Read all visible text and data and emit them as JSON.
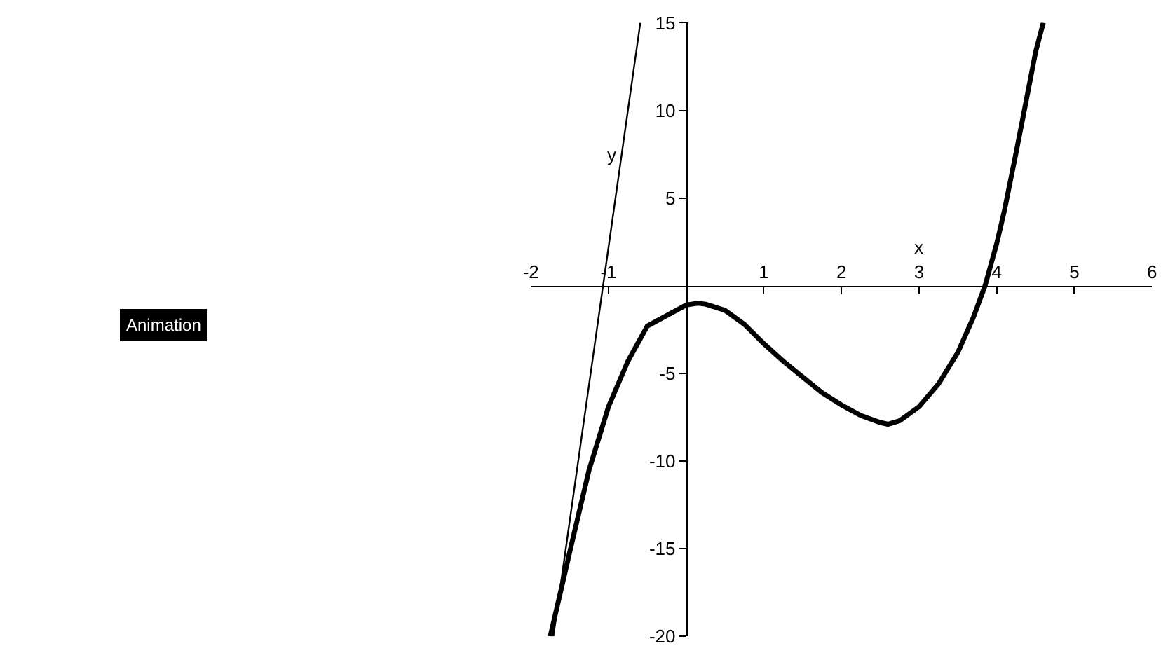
{
  "chart_data": {
    "type": "line",
    "xlabel": "x",
    "ylabel": "y",
    "annotations": [
      "Animation"
    ],
    "series": [
      {
        "color": "#000000",
        "x": [
          -1.75,
          -1.5,
          -1.25,
          -1.0,
          -0.75,
          -0.5,
          0,
          0.15,
          0.25,
          0.5,
          0.75,
          1,
          1.25,
          1.5,
          1.75,
          2,
          2.25,
          2.5,
          2.6,
          2.75,
          3,
          3.25,
          3.5,
          3.7,
          3.85,
          4,
          4.1,
          4.25,
          4.4,
          4.5,
          4.6
        ],
        "values": [
          -20,
          -15.2,
          -10.5,
          -6.9,
          -4.3,
          -2.3,
          -1.1,
          -1.0,
          -1.05,
          -1.4,
          -2.2,
          -3.3,
          -4.3,
          -5.2,
          -6.1,
          -6.8,
          -7.4,
          -7.8,
          -7.9,
          -7.7,
          -6.9,
          -5.6,
          -3.8,
          -1.8,
          0,
          2.4,
          4.3,
          7.6,
          11,
          13.3,
          15
        ]
      },
      {
        "color": "#000000",
        "x": [
          -1.71,
          -0.59
        ],
        "values": [
          -20,
          15
        ]
      }
    ],
    "xlim": [
      -2,
      6
    ],
    "xticks": [
      -2,
      -1,
      1,
      2,
      3,
      4,
      5,
      6
    ],
    "ylim": [
      -20,
      15
    ],
    "yticks": [
      -20,
      -15,
      -10,
      -5,
      5,
      10,
      15
    ],
    "marker": "none",
    "line_style": "solid"
  }
}
